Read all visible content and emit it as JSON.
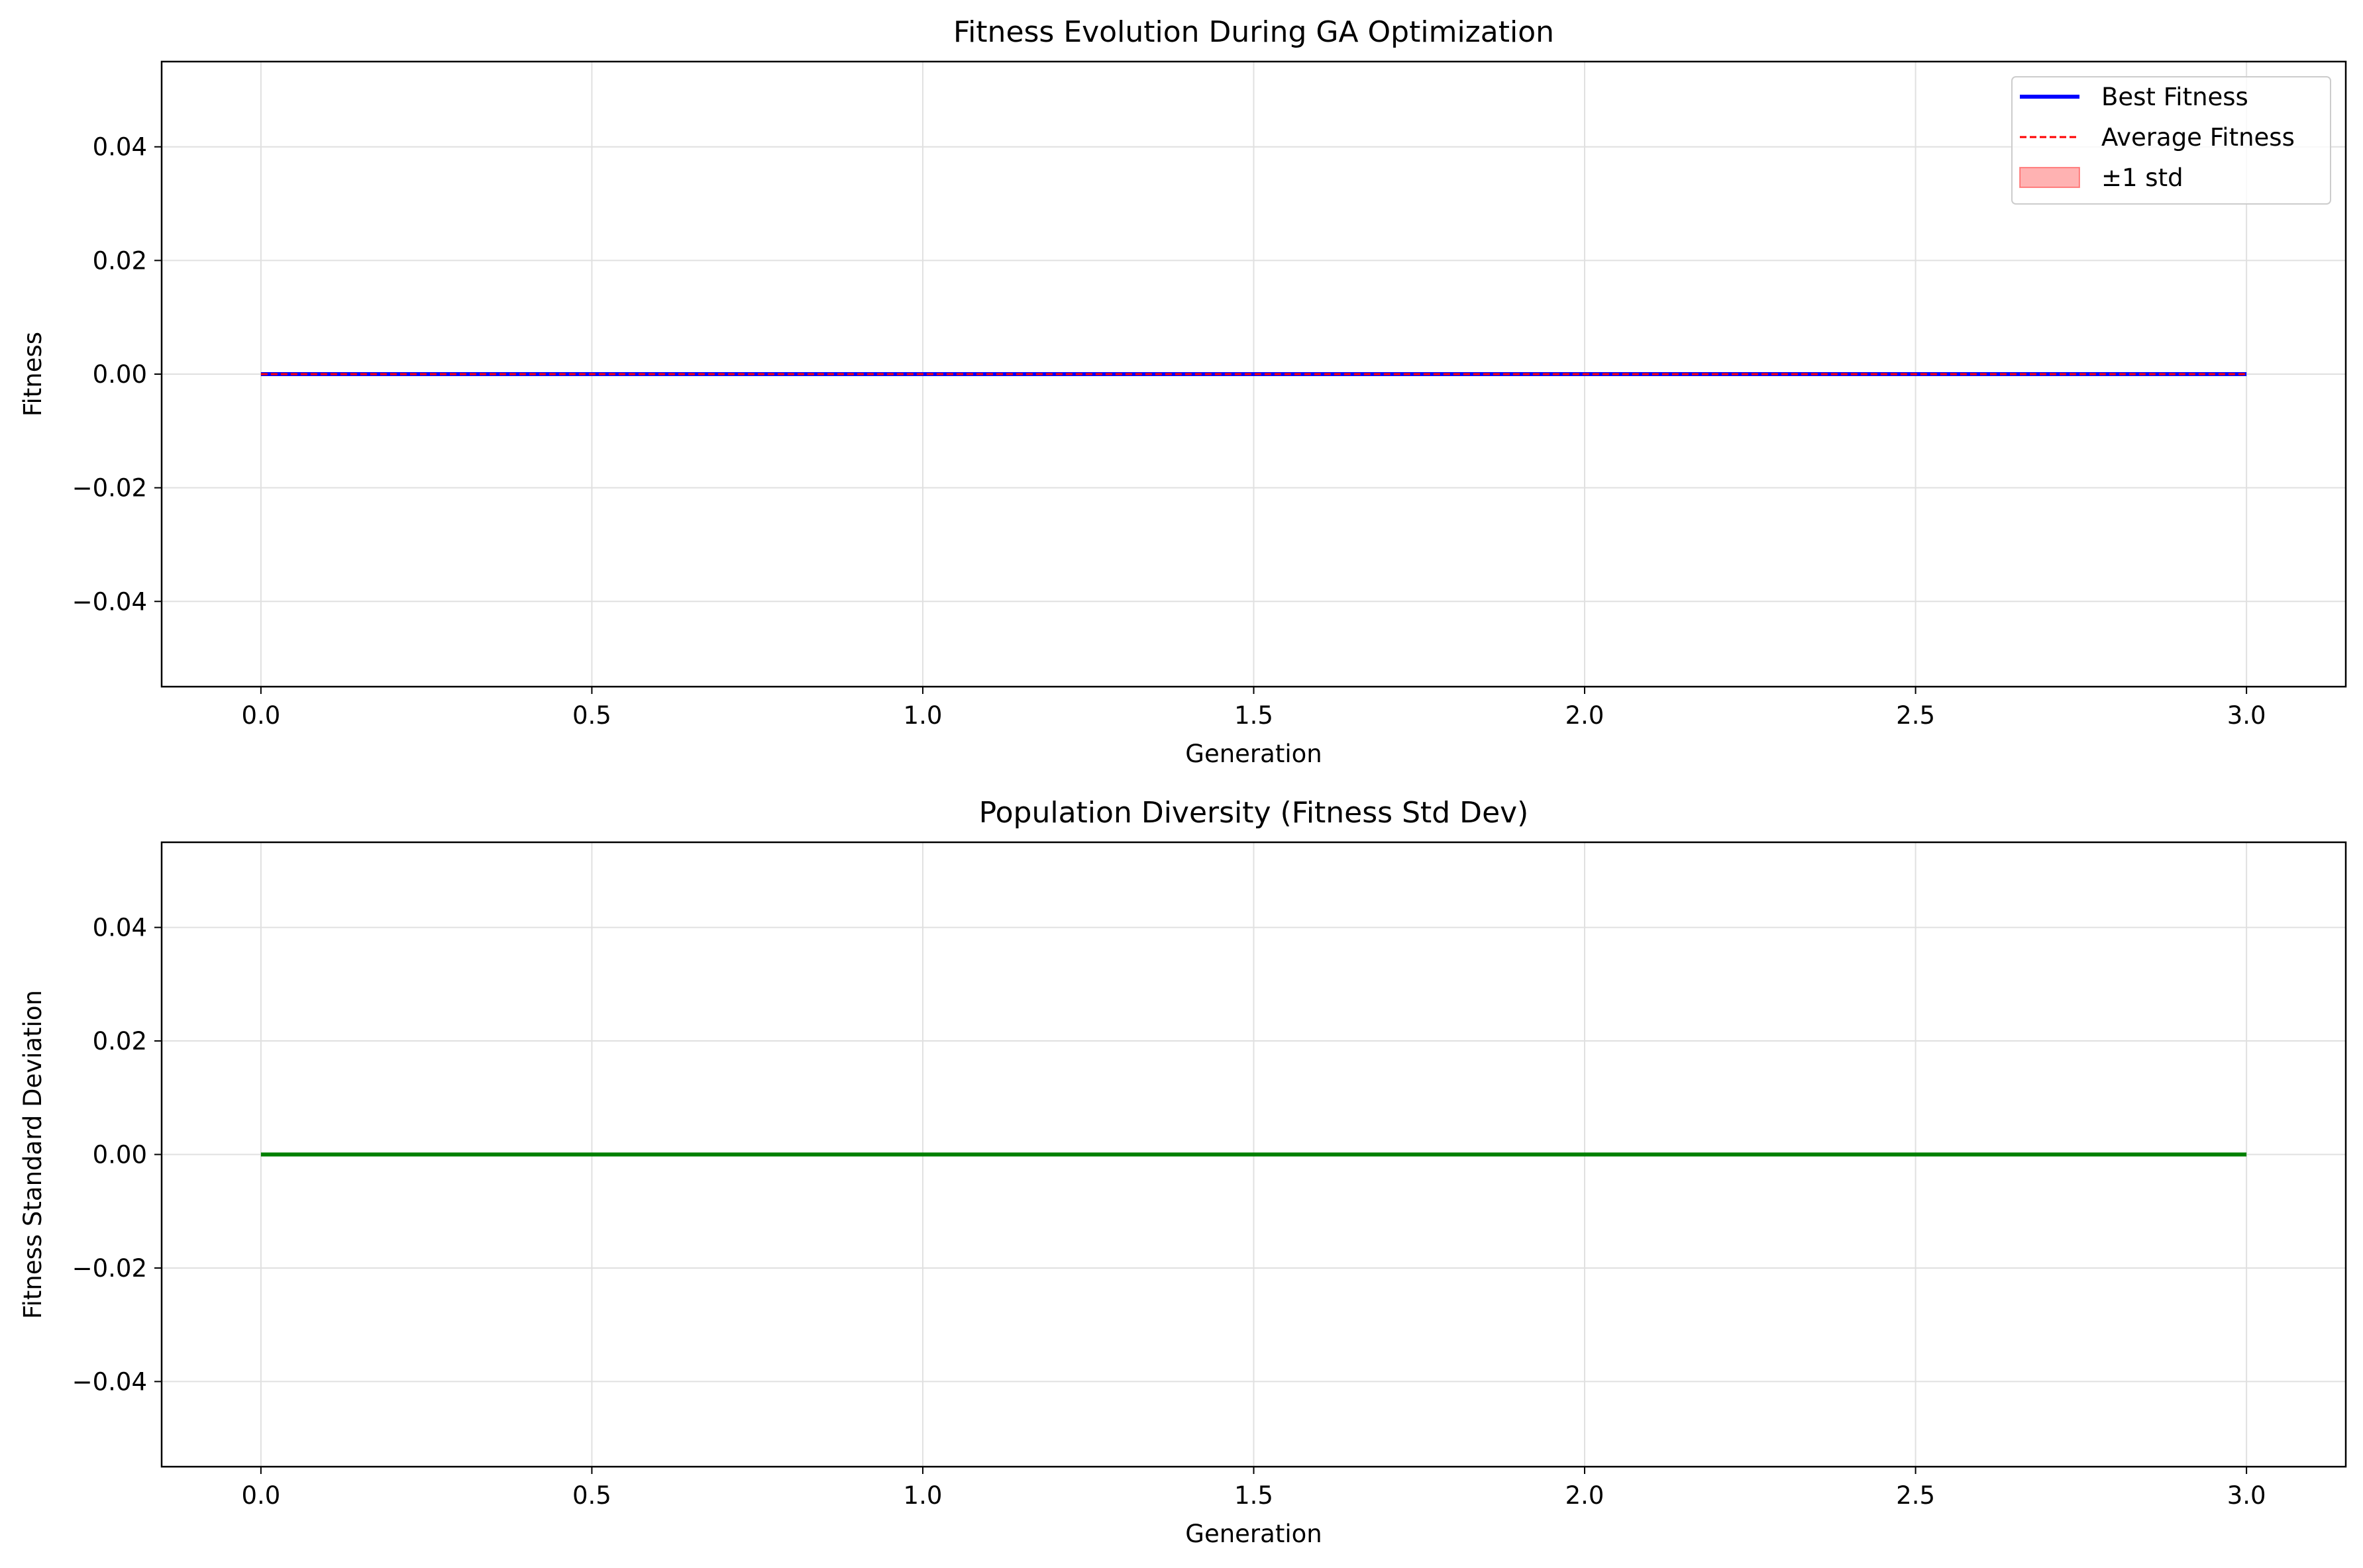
{
  "chart_data": [
    {
      "type": "line",
      "title": "Fitness Evolution During GA Optimization",
      "xlabel": "Generation",
      "ylabel": "Fitness",
      "xlim": [
        -0.15,
        3.15
      ],
      "ylim": [
        -0.055,
        0.055
      ],
      "xticks": [
        0.0,
        0.5,
        1.0,
        1.5,
        2.0,
        2.5,
        3.0
      ],
      "xtick_labels": [
        "0.0",
        "0.5",
        "1.0",
        "1.5",
        "2.0",
        "2.5",
        "3.0"
      ],
      "yticks": [
        -0.04,
        -0.02,
        0.0,
        0.02,
        0.04
      ],
      "ytick_labels": [
        "−0.04",
        "−0.02",
        "0.00",
        "0.02",
        "0.04"
      ],
      "grid": true,
      "legend_position": "upper right",
      "x": [
        0,
        1,
        2,
        3
      ],
      "series": [
        {
          "name": "Best Fitness",
          "values": [
            0,
            0,
            0,
            0
          ],
          "color": "#0000ff",
          "style": "solid"
        },
        {
          "name": "Average Fitness",
          "values": [
            0,
            0,
            0,
            0
          ],
          "color": "#ff0000",
          "style": "dashed"
        }
      ],
      "band": {
        "name": "±1 std",
        "lower": [
          0,
          0,
          0,
          0
        ],
        "upper": [
          0,
          0,
          0,
          0
        ],
        "color": "#ff0000"
      }
    },
    {
      "type": "line",
      "title": "Population Diversity (Fitness Std Dev)",
      "xlabel": "Generation",
      "ylabel": "Fitness Standard Deviation",
      "xlim": [
        -0.15,
        3.15
      ],
      "ylim": [
        -0.055,
        0.055
      ],
      "xticks": [
        0.0,
        0.5,
        1.0,
        1.5,
        2.0,
        2.5,
        3.0
      ],
      "xtick_labels": [
        "0.0",
        "0.5",
        "1.0",
        "1.5",
        "2.0",
        "2.5",
        "3.0"
      ],
      "yticks": [
        -0.04,
        -0.02,
        0.0,
        0.02,
        0.04
      ],
      "ytick_labels": [
        "−0.04",
        "−0.02",
        "0.00",
        "0.02",
        "0.04"
      ],
      "grid": true,
      "x": [
        0,
        1,
        2,
        3
      ],
      "series": [
        {
          "values": [
            0,
            0,
            0,
            0
          ],
          "color": "#008000",
          "style": "solid"
        }
      ]
    }
  ]
}
